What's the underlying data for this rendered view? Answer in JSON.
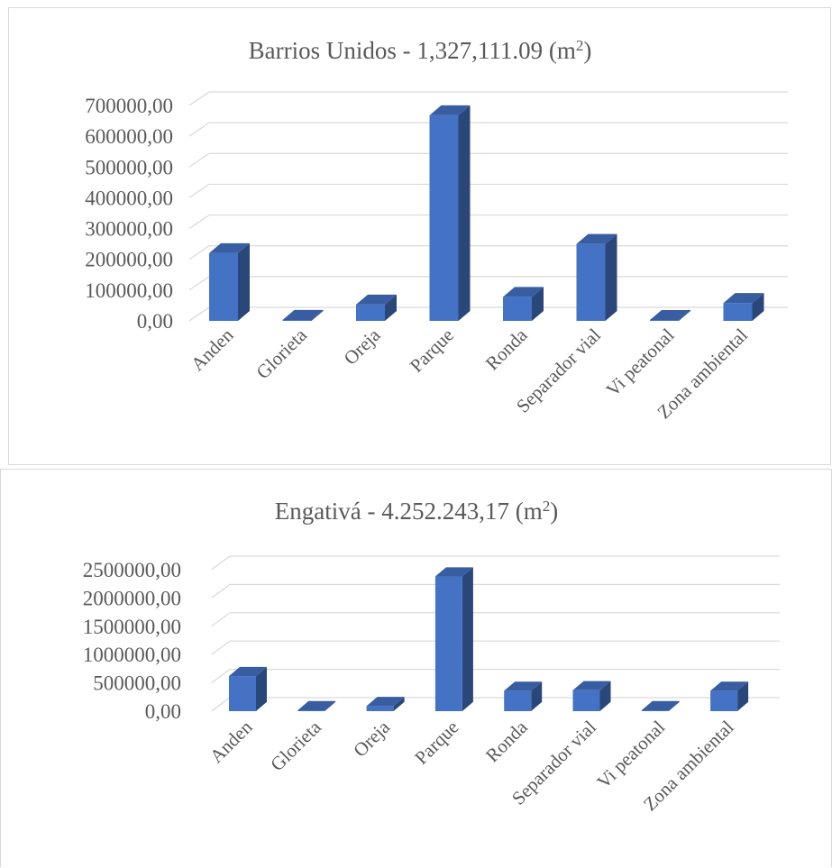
{
  "chart_data": [
    {
      "type": "bar",
      "title": "Barrios Unidos - 1,327,111.09 (m",
      "title_sup": "2",
      "title_end": ")",
      "categories": [
        "Anden",
        "Glorieta",
        "Oreja",
        "Parque",
        "Ronda",
        "Separador vial",
        "Vi peatonal",
        "Zona ambiental"
      ],
      "values": [
        220000,
        3000,
        53000,
        668000,
        78000,
        250000,
        2000,
        58000
      ],
      "y_ticks": [
        "0,00",
        "100000,00",
        "200000,00",
        "300000,00",
        "400000,00",
        "500000,00",
        "600000,00",
        "700000,00"
      ],
      "ylim": [
        0,
        700000
      ],
      "grid": true,
      "bar_color": "#4472c4",
      "three_d": true
    },
    {
      "type": "bar",
      "title": "Engativá - 4.252.243,17  (m",
      "title_sup": "2",
      "title_end": ")",
      "categories": [
        "Anden",
        "Glorieta",
        "Oreja",
        "Parque",
        "Ronda",
        "Separador vial",
        "Vi peatonal",
        "Zona ambiental"
      ],
      "values": [
        620000,
        10000,
        90000,
        2380000,
        360000,
        370000,
        5000,
        360000
      ],
      "y_ticks": [
        "0,00",
        "500000,00",
        "1000000,00",
        "1500000,00",
        "2000000,00",
        "2500000,00"
      ],
      "ylim": [
        0,
        2500000
      ],
      "grid": true,
      "bar_color": "#4472c4",
      "three_d": true
    }
  ]
}
